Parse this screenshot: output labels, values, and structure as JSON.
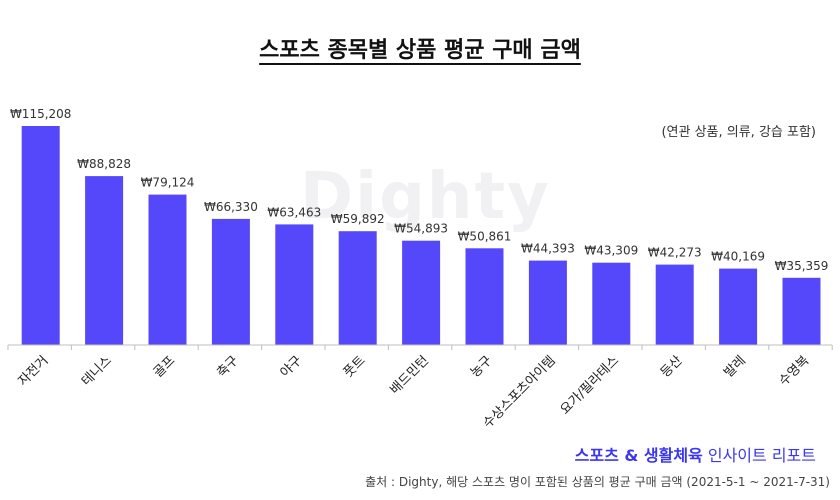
{
  "title": "스포츠 종목별 상품 평균 구매 금액",
  "note": "(연관 상품, 의류, 강습 포함)",
  "watermark": "Dighty",
  "brand": {
    "bold": "스포츠 & 생활체육",
    "light": " 인사이트 리포트"
  },
  "source": "출처 : Dighty, 해당 스포츠 명이 포함된 상품의 평균 구매 금액 (2021-5-1 ~ 2021-7-31)",
  "colors": {
    "bar": "#5548fb",
    "axis": "#bfbfbf"
  },
  "chart_data": {
    "type": "bar",
    "categories": [
      "자전거",
      "테니스",
      "골프",
      "축구",
      "야구",
      "풋트",
      "배드민턴",
      "농구",
      "수상스포츠아이템",
      "요가/필라테스",
      "등산",
      "발레",
      "수영복"
    ],
    "values": [
      115208,
      88828,
      79124,
      66330,
      63463,
      59892,
      54893,
      50861,
      44393,
      43309,
      42273,
      40169,
      35359
    ],
    "value_labels": [
      "₩115,208",
      "₩88,828",
      "₩79,124",
      "₩66,330",
      "₩63,463",
      "₩59,892",
      "₩54,893",
      "₩50,861",
      "₩44,393",
      "₩43,309",
      "₩42,273",
      "₩40,169",
      "₩35,359"
    ],
    "ylim": [
      0,
      115208
    ],
    "grid": false,
    "title": "스포츠 종목별 상품 평균 구매 금액",
    "xlabel": "",
    "ylabel": ""
  }
}
